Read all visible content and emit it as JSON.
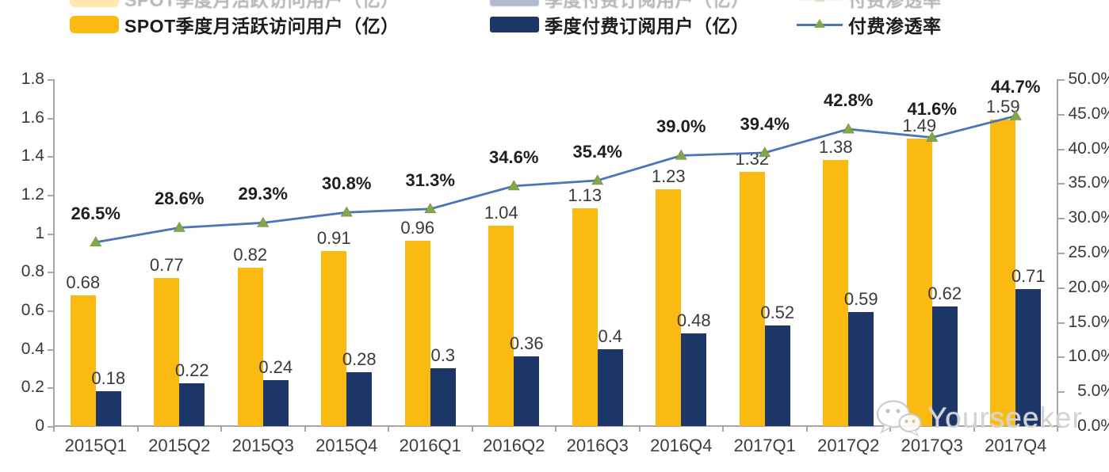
{
  "legend": {
    "items": [
      {
        "label": "SPOT季度月活跃访问用户（亿）",
        "swatch_color": "#FBBA12"
      },
      {
        "label": "季度付费订阅用户（亿）",
        "swatch_color": "#1C3667"
      },
      {
        "label": "付费渗透率",
        "line_color": "#4C74B9",
        "marker_color": "#84A74A"
      }
    ]
  },
  "watermark": {
    "text": "Yourseeker",
    "icon": "wechat-icon"
  },
  "colors": {
    "mau_bar": "#FBBA12",
    "subs_bar": "#1C3667",
    "penetration_line": "#4C74B9",
    "penetration_marker": "#84A74A",
    "axis": "#A6A6A6",
    "label_text": "#3a3a3a"
  },
  "chart_data": {
    "type": "bar",
    "subtype": "combo-bar-line-dual-axis",
    "categories": [
      "2015Q1",
      "2015Q2",
      "2015Q3",
      "2015Q4",
      "2016Q1",
      "2016Q2",
      "2016Q3",
      "2016Q4",
      "2017Q1",
      "2017Q2",
      "2017Q3",
      "2017Q4"
    ],
    "series": [
      {
        "name": "SPOT季度月活跃访问用户（亿）",
        "type": "bar",
        "axis": "left",
        "color": "#FBBA12",
        "values": [
          0.68,
          0.77,
          0.82,
          0.91,
          0.96,
          1.04,
          1.13,
          1.23,
          1.32,
          1.38,
          1.49,
          1.59
        ],
        "labels": [
          "0.68",
          "0.77",
          "0.82",
          "0.91",
          "0.96",
          "1.04",
          "1.13",
          "1.23",
          "1.32",
          "1.38",
          "1.49",
          "1.59"
        ]
      },
      {
        "name": "季度付费订阅用户（亿）",
        "type": "bar",
        "axis": "left",
        "color": "#1C3667",
        "values": [
          0.18,
          0.22,
          0.24,
          0.28,
          0.3,
          0.36,
          0.4,
          0.48,
          0.52,
          0.59,
          0.62,
          0.71
        ],
        "labels": [
          "0.18",
          "0.22",
          "0.24",
          "0.28",
          "0.3",
          "0.36",
          "0.4",
          "0.48",
          "0.52",
          "0.59",
          "0.62",
          "0.71"
        ]
      },
      {
        "name": "付费渗透率",
        "type": "line",
        "axis": "right",
        "color": "#4C74B9",
        "marker": "triangle-up",
        "marker_color": "#84A74A",
        "values": [
          26.5,
          28.6,
          29.3,
          30.8,
          31.3,
          34.6,
          35.4,
          39.0,
          39.4,
          42.8,
          41.6,
          44.7
        ],
        "labels": [
          "26.5%",
          "28.6%",
          "29.3%",
          "30.8%",
          "31.3%",
          "34.6%",
          "35.4%",
          "39.0%",
          "39.4%",
          "42.8%",
          "41.6%",
          "44.7%"
        ]
      }
    ],
    "left_axis": {
      "min": 0,
      "max": 1.8,
      "step": 0.2,
      "tick_labels": [
        "1.8",
        "1.6",
        "1.4",
        "1.2",
        "1",
        "0.8",
        "0.6",
        "0.4",
        "0.2",
        "0"
      ]
    },
    "right_axis": {
      "min": 0,
      "max": 50,
      "step": 5,
      "tick_labels": [
        "50.0%",
        "45.0%",
        "40.0%",
        "35.0%",
        "30.0%",
        "25.0%",
        "20.0%",
        "15.0%",
        "10.0%",
        "5.0%",
        "0.0%"
      ]
    },
    "grid": false,
    "legend_position": "top",
    "title": "",
    "xlabel": "",
    "ylabel": ""
  }
}
